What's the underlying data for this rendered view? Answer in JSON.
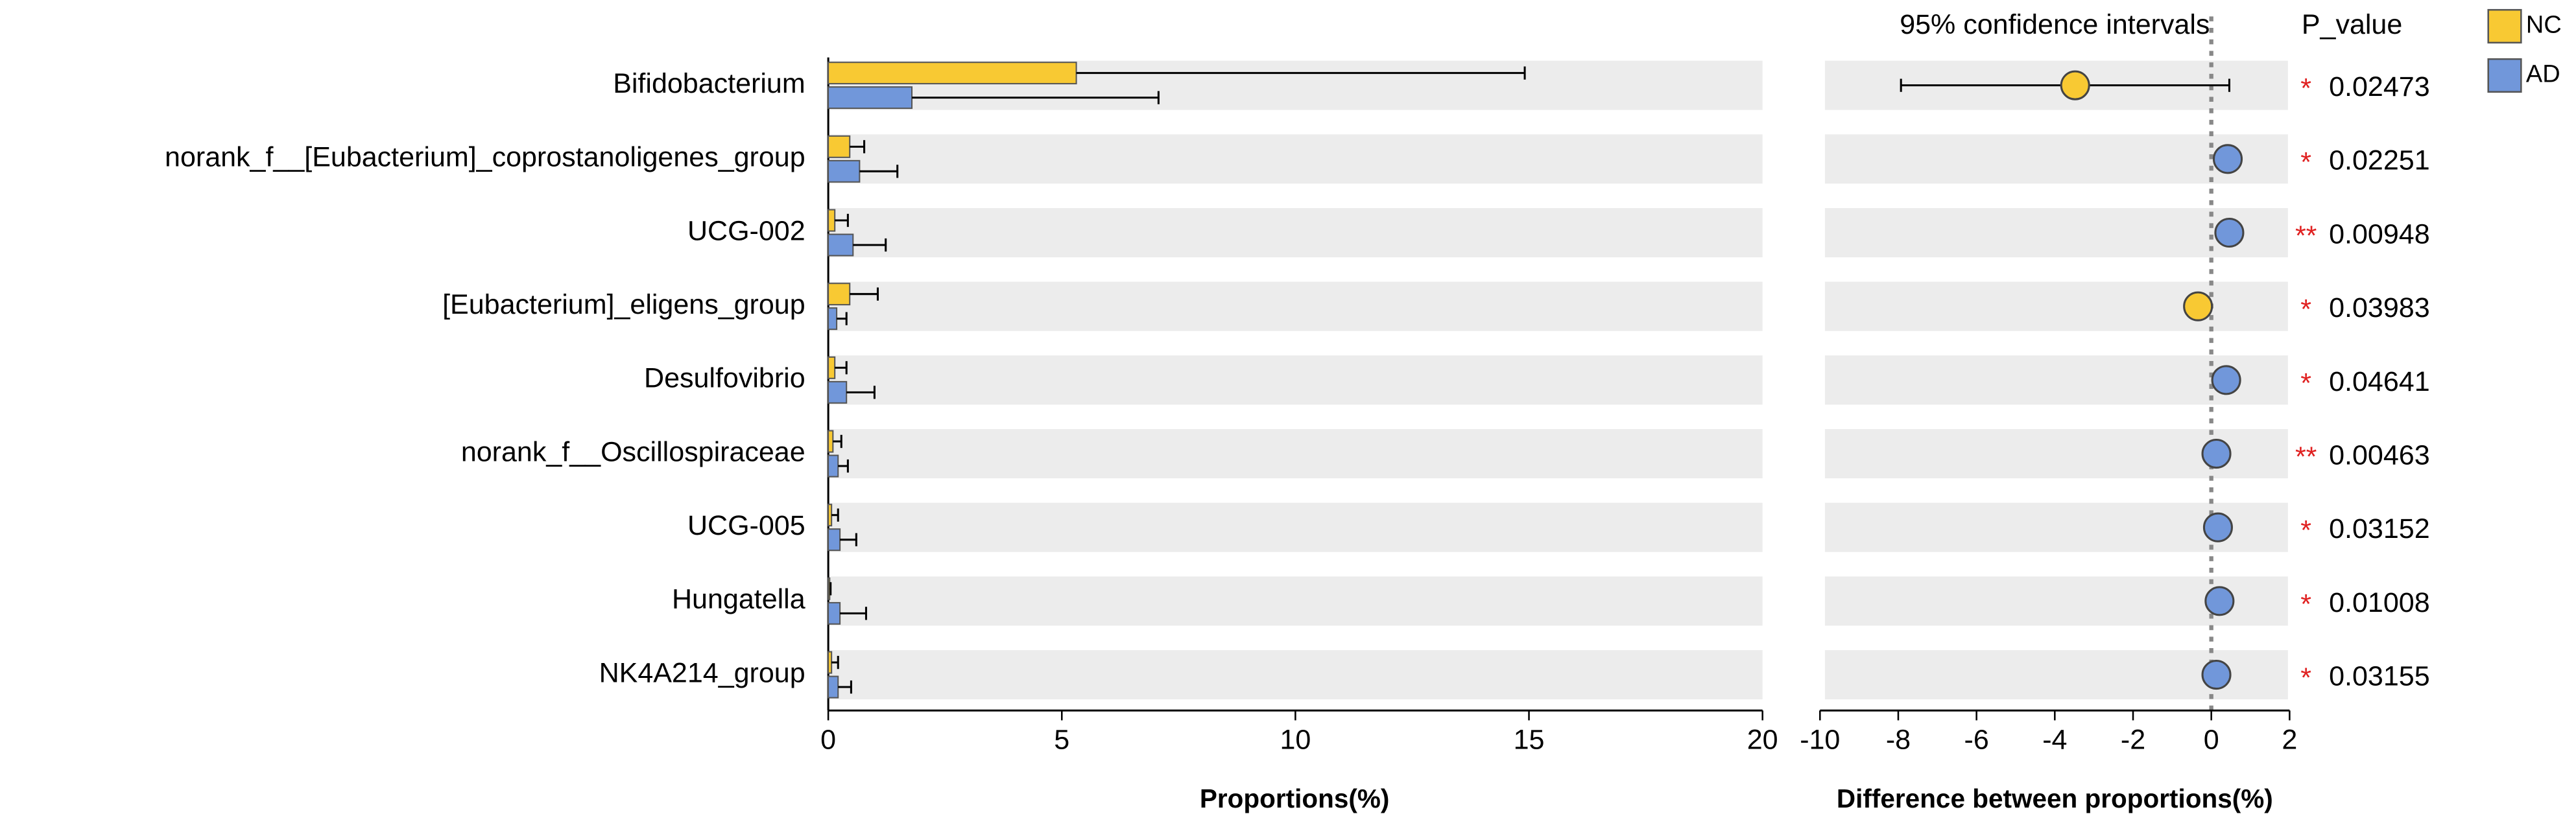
{
  "chart_data": {
    "type": "extended_error_bar",
    "categories": [
      "Bifidobacterium",
      "norank_f__[Eubacterium]_coprostanoligenes_group",
      "UCG-002",
      "[Eubacterium]_eligens_group",
      "Desulfovibrio",
      "norank_f__Oscillospiraceae",
      "UCG-005",
      "Hungatella",
      "NK4A214_group"
    ],
    "series": [
      {
        "name": "NC",
        "color": "#f8c933",
        "values": [
          5.31,
          0.46,
          0.14,
          0.46,
          0.14,
          0.1,
          0.07,
          0.03,
          0.07
        ],
        "errors": [
          9.6,
          0.31,
          0.28,
          0.6,
          0.25,
          0.18,
          0.14,
          0.02,
          0.14
        ]
      },
      {
        "name": "AD",
        "color": "#7197da",
        "values": [
          1.79,
          0.67,
          0.53,
          0.18,
          0.39,
          0.21,
          0.25,
          0.25,
          0.21
        ],
        "errors": [
          5.28,
          0.81,
          0.7,
          0.21,
          0.6,
          0.21,
          0.35,
          0.56,
          0.28
        ]
      }
    ],
    "xlabel": "Proportions(%)",
    "xlim": [
      0,
      20
    ],
    "xticks": [
      0,
      5,
      10,
      15,
      20
    ],
    "diff": {
      "title": "95% confidence intervals",
      "xlabel": "Difference between proportions(%)",
      "xlim": [
        -10,
        2
      ],
      "xticks": [
        -10,
        -8,
        -6,
        -4,
        -2,
        0,
        2
      ],
      "values": [
        -3.48,
        0.42,
        0.46,
        -0.34,
        0.38,
        0.13,
        0.17,
        0.21,
        0.13
      ],
      "ci_low": [
        -7.93,
        0.2,
        0.22,
        -0.58,
        0.16,
        -0.08,
        -0.05,
        -0.02,
        -0.08
      ],
      "ci_high": [
        0.46,
        0.67,
        0.7,
        -0.1,
        0.6,
        0.34,
        0.39,
        0.44,
        0.34
      ]
    },
    "pvalue": {
      "title": "P_value",
      "values": [
        0.02473,
        0.02251,
        0.00948,
        0.03983,
        0.04641,
        0.00463,
        0.03152,
        0.01008,
        0.03155
      ],
      "significance": [
        "*",
        "*",
        "**",
        "*",
        "*",
        "**",
        "*",
        "*",
        "*"
      ]
    },
    "legend": "top-right"
  }
}
